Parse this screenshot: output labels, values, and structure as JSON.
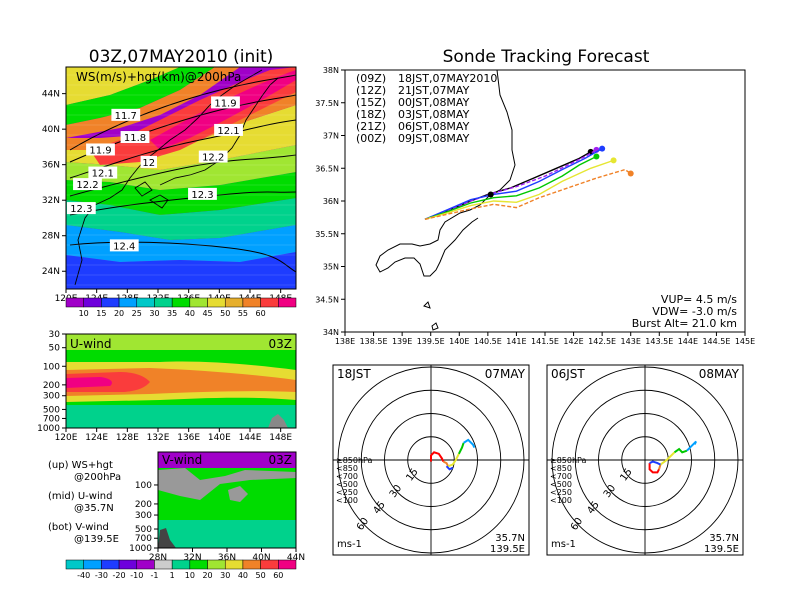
{
  "figure": {
    "left_title": "03Z,07MAY2010 (init)",
    "right_title": "Sonde Tracking Forecast"
  },
  "chart_data": [
    {
      "type": "heatmap",
      "panel": "ws_hgt_200hPa",
      "label": "WS(m/s)+hgt(km)@200hPa",
      "x_ticks": [
        "120E",
        "124E",
        "128E",
        "132E",
        "136E",
        "140E",
        "144E",
        "148E"
      ],
      "y_ticks": [
        "24N",
        "28N",
        "32N",
        "36N",
        "40N",
        "44N"
      ],
      "xlim": [
        120,
        150
      ],
      "ylim": [
        22,
        47
      ],
      "colorbar_ticks": [
        "10",
        "15",
        "20",
        "25",
        "30",
        "35",
        "40",
        "45",
        "50",
        "55",
        "60"
      ],
      "colors": [
        "#a000c8",
        "#6e00dc",
        "#1e3cff",
        "#00a0ff",
        "#00c8c8",
        "#00d28c",
        "#00dc00",
        "#a0e632",
        "#e6dc32",
        "#e6af2d",
        "#f08228",
        "#fa3c3c",
        "#f00082"
      ],
      "contours": [
        {
          "label": "11.9",
          "lon": 140.8,
          "lat": 42.9
        },
        {
          "label": "11.7",
          "lon": 127.8,
          "lat": 41.5
        },
        {
          "label": "12.1",
          "lon": 141.2,
          "lat": 39.8
        },
        {
          "label": "11.8",
          "lon": 129.0,
          "lat": 39.0
        },
        {
          "label": "11.9",
          "lon": 124.5,
          "lat": 37.6
        },
        {
          "label": "12.2",
          "lon": 139.2,
          "lat": 36.8
        },
        {
          "label": "12",
          "lon": 130.8,
          "lat": 36.2
        },
        {
          "label": "12.1",
          "lon": 124.8,
          "lat": 35.0
        },
        {
          "label": "12.2",
          "lon": 122.8,
          "lat": 33.7
        },
        {
          "label": "12.3",
          "lon": 137.8,
          "lat": 32.6
        },
        {
          "label": "12.3",
          "lon": 122.0,
          "lat": 31.0
        },
        {
          "label": "12.4",
          "lon": 127.6,
          "lat": 26.8
        }
      ]
    },
    {
      "type": "heatmap",
      "panel": "u_wind",
      "label": "U-wind",
      "time_label": "03Z",
      "x_ticks": [
        "120E",
        "124E",
        "128E",
        "132E",
        "136E",
        "140E",
        "144E",
        "148E"
      ],
      "y_ticks": [
        "30",
        "50",
        "100",
        "200",
        "300",
        "500",
        "700",
        "1000"
      ]
    },
    {
      "type": "heatmap",
      "panel": "v_wind",
      "label": "V-wind",
      "time_label": "03Z",
      "x_ticks": [
        "28N",
        "32N",
        "36N",
        "40N",
        "44N"
      ],
      "y_ticks": [
        "100",
        "200",
        "300",
        "500",
        "700",
        "1000"
      ],
      "colorbar_ticks": [
        "-40",
        "-30",
        "-20",
        "-10",
        "-1",
        "1",
        "10",
        "20",
        "30",
        "40",
        "50",
        "60"
      ],
      "colors": [
        "#00c8c8",
        "#00a0ff",
        "#1e3cff",
        "#6e00dc",
        "#a000c8",
        "#cccccc",
        "#00d28c",
        "#00dc00",
        "#a0e632",
        "#e6dc32",
        "#f08228",
        "#fa3c3c",
        "#f00082"
      ]
    },
    {
      "type": "line",
      "panel": "track_map",
      "x_ticks": [
        "138E",
        "138.5E",
        "139E",
        "139.5E",
        "140E",
        "140.5E",
        "141E",
        "141.5E",
        "142E",
        "142.5E",
        "143E",
        "143.5E",
        "144E",
        "144.5E",
        "145E"
      ],
      "y_ticks": [
        "34N",
        "34.5N",
        "35N",
        "35.5N",
        "36N",
        "36.5N",
        "37N",
        "37.5N",
        "38N"
      ],
      "xlim": [
        138,
        145
      ],
      "ylim": [
        34,
        38
      ],
      "series": [
        {
          "name": "(09Z)",
          "time": "18JST,07MAY2010",
          "color": "#000000",
          "dash": false,
          "lon": [
            139.4,
            139.8,
            140.2,
            140.5,
            140.9,
            141.3,
            141.7,
            142.1,
            142.3
          ],
          "lat": [
            35.72,
            35.85,
            36.0,
            36.1,
            36.2,
            36.35,
            36.5,
            36.65,
            36.75
          ]
        },
        {
          "name": "(12Z)",
          "time": "21JST,07MAY",
          "color": "#a020f0",
          "dash": true,
          "lon": [
            139.4,
            139.8,
            140.2,
            140.6,
            141.0,
            141.5,
            141.9,
            142.2,
            142.4
          ],
          "lat": [
            35.72,
            35.86,
            36.0,
            36.12,
            36.22,
            36.38,
            36.55,
            36.68,
            36.78
          ]
        },
        {
          "name": "(15Z)",
          "time": "00JST,08MAY",
          "color": "#1e3cff",
          "dash": false,
          "lon": [
            139.4,
            139.8,
            140.2,
            140.6,
            141.0,
            141.4,
            141.8,
            142.2,
            142.5
          ],
          "lat": [
            35.72,
            35.87,
            36.02,
            36.1,
            36.15,
            36.3,
            36.48,
            36.65,
            36.8
          ]
        },
        {
          "name": "(18Z)",
          "time": "03JST,08MAY",
          "color": "#00c800",
          "dash": false,
          "lon": [
            139.4,
            139.8,
            140.2,
            140.6,
            141.0,
            141.4,
            141.8,
            142.1,
            142.4
          ],
          "lat": [
            35.72,
            35.84,
            35.97,
            36.05,
            36.08,
            36.2,
            36.38,
            36.55,
            36.68
          ]
        },
        {
          "name": "(21Z)",
          "time": "06JST,08MAY",
          "color": "#e6e632",
          "dash": false,
          "lon": [
            139.4,
            139.8,
            140.2,
            140.6,
            141.0,
            141.4,
            141.8,
            142.3,
            142.7
          ],
          "lat": [
            35.72,
            35.82,
            35.93,
            36.0,
            35.98,
            36.1,
            36.3,
            36.5,
            36.62
          ]
        },
        {
          "name": "(00Z)",
          "time": "09JST,08MAY",
          "color": "#f08228",
          "dash": true,
          "lon": [
            139.4,
            139.8,
            140.2,
            140.6,
            141.0,
            141.4,
            141.9,
            142.4,
            142.9,
            143.0
          ],
          "lat": [
            35.72,
            35.8,
            35.88,
            35.95,
            35.9,
            36.05,
            36.2,
            36.35,
            36.48,
            36.42
          ]
        }
      ],
      "params": {
        "vup": "VUP= 4.5 m/s",
        "vdw": "VDW= -3.0 m/s",
        "burst": "Burst Alt= 21.0 km"
      }
    },
    {
      "type": "line",
      "panel": "hodograph_1",
      "time_label": "18JST",
      "date_label": "07MAY",
      "ring_labels": [
        "15",
        "30",
        "45",
        "60"
      ],
      "level_legend": [
        "≥850hPa",
        "<850",
        "<700",
        "<500",
        "<250",
        "<100"
      ],
      "level_colors": [
        "#ff0000",
        "#f08228",
        "#e6e632",
        "#00c800",
        "#00a0ff",
        "#1e3cff"
      ],
      "lat_label": "35.7N",
      "lon_label": "139.5E",
      "unit": "ms-1",
      "segments": [
        {
          "color": "#ff0000",
          "u": [
            0,
            0,
            2,
            5,
            7,
            8
          ],
          "v": [
            -1,
            3,
            5,
            4,
            1,
            -1
          ]
        },
        {
          "color": "#f08228",
          "u": [
            8,
            10,
            11
          ],
          "v": [
            -1,
            -2,
            -4
          ]
        },
        {
          "color": "#e6e632",
          "u": [
            11,
            14,
            16,
            18
          ],
          "v": [
            -4,
            -3,
            0,
            4
          ]
        },
        {
          "color": "#00c800",
          "u": [
            18,
            20,
            21
          ],
          "v": [
            4,
            8,
            11
          ]
        },
        {
          "color": "#00a0ff",
          "u": [
            21,
            24,
            27,
            28
          ],
          "v": [
            11,
            13,
            10,
            8
          ]
        },
        {
          "color": "#1e3cff",
          "u": [
            10,
            12,
            14
          ],
          "v": [
            -4,
            -6,
            -5
          ]
        }
      ]
    },
    {
      "type": "line",
      "panel": "hodograph_2",
      "time_label": "06JST",
      "date_label": "08MAY",
      "ring_labels": [
        "15",
        "30",
        "45",
        "60"
      ],
      "level_legend": [
        "≥850hPa",
        "<850",
        "<700",
        "<500",
        "<250",
        "<100"
      ],
      "level_colors": [
        "#ff0000",
        "#f08228",
        "#e6e632",
        "#00c800",
        "#00a0ff",
        "#1e3cff"
      ],
      "lat_label": "35.7N",
      "lon_label": "139.5E",
      "unit": "ms-1",
      "segments": [
        {
          "color": "#ff0000",
          "u": [
            3,
            3,
            5,
            8,
            9
          ],
          "v": [
            -2,
            -6,
            -8,
            -8,
            -6
          ]
        },
        {
          "color": "#f08228",
          "u": [
            9,
            10
          ],
          "v": [
            -6,
            -3
          ]
        },
        {
          "color": "#e6e632",
          "u": [
            10,
            14,
            17,
            19
          ],
          "v": [
            -3,
            0,
            3,
            5
          ]
        },
        {
          "color": "#00c800",
          "u": [
            19,
            22,
            24,
            27
          ],
          "v": [
            5,
            7,
            5,
            6
          ]
        },
        {
          "color": "#00a0ff",
          "u": [
            27,
            30,
            33,
            32
          ],
          "v": [
            6,
            9,
            12,
            10
          ]
        },
        {
          "color": "#1e3cff",
          "u": [
            3,
            5,
            8,
            10
          ],
          "v": [
            -2,
            -1,
            -2,
            -3
          ]
        }
      ]
    }
  ],
  "left_notes": [
    {
      "title": "(up) WS+hgt",
      "sub": "@200hPa"
    },
    {
      "title": "(mid) U-wind",
      "sub": "@35.7N"
    },
    {
      "title": "(bot) V-wind",
      "sub": "@139.5E"
    }
  ]
}
